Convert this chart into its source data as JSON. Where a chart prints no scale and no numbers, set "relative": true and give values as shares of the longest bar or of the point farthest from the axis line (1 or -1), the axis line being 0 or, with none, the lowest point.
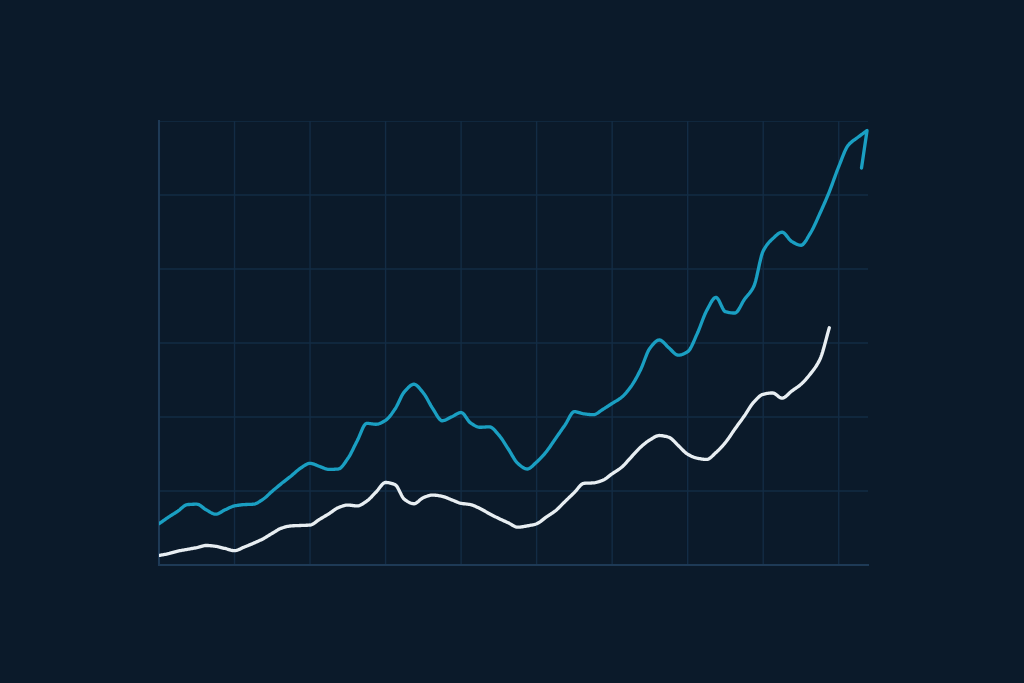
{
  "chart_data": {
    "type": "line",
    "relative": true,
    "grid": true,
    "line_style": "solid",
    "categories": [
      null,
      null,
      null,
      null,
      null,
      null,
      null,
      null,
      null,
      null,
      null,
      null,
      null,
      null,
      null,
      null,
      null,
      null,
      null,
      null,
      null,
      null,
      null,
      null,
      null,
      null,
      null,
      null,
      null,
      null,
      null,
      null,
      null,
      null,
      null,
      null,
      null,
      null,
      null,
      null,
      null,
      null,
      null,
      null,
      null,
      null,
      null,
      null,
      null,
      null,
      null,
      null,
      null,
      null,
      null,
      null,
      null,
      null,
      null,
      null,
      null,
      null,
      null,
      null,
      null,
      null,
      null,
      null,
      null,
      null,
      null,
      null,
      null,
      null,
      null,
      null
    ],
    "series": [
      {
        "color": "#1a9fc2",
        "values": [
          0.095,
          0.11,
          0.124,
          0.139,
          0.14,
          0.127,
          0.117,
          0.127,
          0.136,
          0.139,
          0.14,
          0.151,
          0.17,
          0.188,
          0.205,
          0.223,
          0.234,
          0.227,
          0.22,
          0.221,
          0.245,
          0.286,
          0.326,
          0.324,
          0.333,
          0.359,
          0.399,
          0.416,
          0.396,
          0.36,
          0.332,
          0.341,
          0.351,
          0.327,
          0.317,
          0.318,
          0.299,
          0.267,
          0.234,
          0.221,
          0.237,
          0.26,
          0.291,
          0.322,
          0.353,
          0.348,
          0.346,
          0.358,
          0.372,
          0.386,
          0.411,
          0.449,
          0.499,
          0.518,
          0.5,
          0.483,
          0.491,
          0.532,
          0.585,
          0.616,
          0.583,
          0.58,
          0.611,
          0.641,
          0.723,
          0.751,
          0.766,
          0.745,
          0.736,
          0.764,
          0.809,
          0.859,
          0.917,
          0.966,
          0.984,
          1.0
        ]
      },
      {
        "color": "#e8eef2",
        "values": [
          0.022,
          0.026,
          0.032,
          0.036,
          0.04,
          0.045,
          0.043,
          0.038,
          0.033,
          0.041,
          0.05,
          0.06,
          0.073,
          0.085,
          0.09,
          0.091,
          0.092,
          0.105,
          0.118,
          0.132,
          0.138,
          0.136,
          0.147,
          0.168,
          0.19,
          0.185,
          0.151,
          0.141,
          0.155,
          0.161,
          0.158,
          0.15,
          0.142,
          0.139,
          0.13,
          0.118,
          0.107,
          0.097,
          0.087,
          0.09,
          0.095,
          0.11,
          0.125,
          0.146,
          0.167,
          0.188,
          0.189,
          0.195,
          0.21,
          0.225,
          0.248,
          0.271,
          0.288,
          0.298,
          0.294,
          0.275,
          0.255,
          0.246,
          0.243,
          0.259,
          0.282,
          0.313,
          0.343,
          0.375,
          0.393,
          0.396,
          0.384,
          0.4,
          0.416,
          0.44,
          0.473,
          0.546,
          null,
          null,
          null,
          null
        ]
      }
    ]
  }
}
